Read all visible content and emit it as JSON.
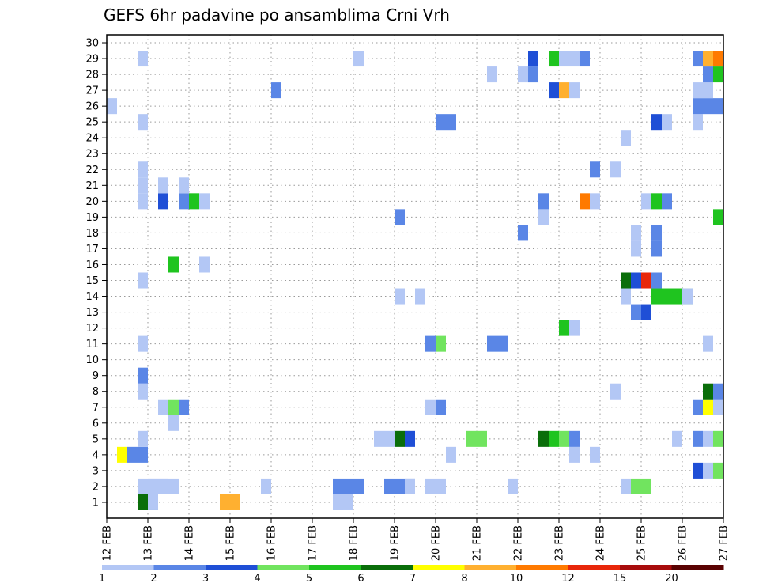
{
  "chart_data": {
    "type": "heatmap",
    "title": "GEFS 6hr padavine po ansamblima Crni Vrh",
    "xlabel": "",
    "ylabel": "",
    "x_ticks": [
      "12 FEB",
      "13 FEB",
      "14 FEB",
      "15 FEB",
      "16 FEB",
      "17 FEB",
      "18 FEB",
      "19 FEB",
      "20 FEB",
      "21 FEB",
      "22 FEB",
      "23 FEB",
      "24 FEB",
      "25 FEB",
      "26 FEB",
      "27 FEB"
    ],
    "y_ticks": [
      "1",
      "2",
      "3",
      "4",
      "5",
      "6",
      "7",
      "8",
      "9",
      "10",
      "11",
      "12",
      "13",
      "14",
      "15",
      "16",
      "17",
      "18",
      "19",
      "20",
      "21",
      "22",
      "23",
      "24",
      "25",
      "26",
      "27",
      "28",
      "29",
      "30"
    ],
    "xlim": [
      "12 FEB 00Z",
      "27 FEB 00Z"
    ],
    "ylim": [
      0,
      30
    ],
    "time_step_hours": 6,
    "grid": true,
    "colorbar": {
      "labels": [
        "1",
        "2",
        "3",
        "4",
        "5",
        "6",
        "7",
        "8",
        "10",
        "12",
        "15",
        "20"
      ],
      "colors": [
        "#b3c7f5",
        "#5a86e6",
        "#1f4fd6",
        "#71e45f",
        "#1fc41f",
        "#0a6e0a",
        "#ffff00",
        "#ffb030",
        "#ff7a00",
        "#e8270a",
        "#a80c0c",
        "#5a0202"
      ]
    },
    "cells": [
      [
        0,
        0.75,
        1,
        5
      ],
      [
        0,
        0.75,
        2,
        6
      ],
      [
        0,
        2.75,
        1,
        8
      ],
      [
        0,
        2.75,
        2,
        8
      ],
      [
        0,
        1,
        1,
        1
      ],
      [
        0,
        5.5,
        1,
        1
      ],
      [
        0,
        5.5,
        2,
        1
      ],
      [
        1,
        0.75,
        3,
        1
      ],
      [
        1,
        1,
        3,
        1
      ],
      [
        1,
        3.75,
        1,
        1
      ],
      [
        1,
        5.5,
        3,
        2
      ],
      [
        1,
        6.75,
        3,
        2
      ],
      [
        1,
        7.25,
        1,
        1
      ],
      [
        1,
        7.75,
        2,
        1
      ],
      [
        1,
        9.75,
        1,
        1
      ],
      [
        1,
        12.5,
        1,
        1
      ],
      [
        1,
        12.75,
        1,
        4
      ],
      [
        1,
        13,
        1,
        4
      ],
      [
        2,
        14.25,
        1,
        3
      ],
      [
        2,
        14.5,
        1,
        1
      ],
      [
        2,
        14.75,
        1,
        4
      ],
      [
        2,
        15,
        1,
        6
      ],
      [
        3,
        0.25,
        1,
        7
      ],
      [
        3,
        0.5,
        2,
        2
      ],
      [
        3,
        8.25,
        1,
        1
      ],
      [
        3,
        11.25,
        1,
        1
      ],
      [
        3,
        11.75,
        1,
        1
      ],
      [
        4,
        0.75,
        1,
        1
      ],
      [
        4,
        6.5,
        2,
        1
      ],
      [
        4,
        7,
        1,
        6
      ],
      [
        4,
        7.25,
        1,
        3
      ],
      [
        4,
        8.75,
        2,
        4
      ],
      [
        4,
        10.5,
        1,
        6
      ],
      [
        4,
        10.75,
        1,
        5
      ],
      [
        4,
        11,
        1,
        4
      ],
      [
        4,
        11.25,
        1,
        2
      ],
      [
        4,
        13.75,
        1,
        1
      ],
      [
        4,
        14.25,
        1,
        2
      ],
      [
        4,
        14.5,
        1,
        1
      ],
      [
        4,
        14.75,
        1,
        4
      ],
      [
        4,
        15,
        1,
        4
      ],
      [
        5,
        1.5,
        1,
        1
      ],
      [
        5,
        15,
        1,
        4
      ],
      [
        6,
        1.25,
        1,
        1
      ],
      [
        6,
        1.5,
        1,
        4
      ],
      [
        6,
        1.75,
        1,
        2
      ],
      [
        6,
        7.75,
        1,
        1
      ],
      [
        6,
        8,
        1,
        2
      ],
      [
        6,
        14.25,
        1,
        2
      ],
      [
        6,
        14.5,
        1,
        7
      ],
      [
        6,
        14.75,
        2,
        1
      ],
      [
        7,
        0.75,
        1,
        1
      ],
      [
        7,
        12.25,
        1,
        1
      ],
      [
        7,
        14.5,
        1,
        6
      ],
      [
        7,
        14.75,
        1,
        2
      ],
      [
        8,
        0.75,
        1,
        2
      ],
      [
        9,
        15,
        1,
        1
      ],
      [
        10,
        0.75,
        1,
        1
      ],
      [
        10,
        7.75,
        1,
        2
      ],
      [
        10,
        8,
        1,
        4
      ],
      [
        10,
        9.25,
        2,
        2
      ],
      [
        10,
        14.5,
        1,
        1
      ],
      [
        11,
        11,
        1,
        5
      ],
      [
        11,
        11.25,
        1,
        1
      ],
      [
        12,
        12.75,
        1,
        2
      ],
      [
        12,
        13,
        1,
        3
      ],
      [
        13,
        7,
        1,
        1
      ],
      [
        13,
        7.5,
        1,
        1
      ],
      [
        13,
        12.5,
        1,
        1
      ],
      [
        13,
        13.25,
        4,
        5
      ],
      [
        13,
        14,
        1,
        1
      ],
      [
        14,
        0.75,
        1,
        1
      ],
      [
        14,
        12.5,
        1,
        6
      ],
      [
        14,
        12.75,
        1,
        3
      ],
      [
        14,
        13,
        1,
        10
      ],
      [
        14,
        13.25,
        1,
        2
      ],
      [
        15,
        1.5,
        1,
        5
      ],
      [
        15,
        2.25,
        1,
        1
      ],
      [
        15,
        15,
        1,
        2
      ],
      [
        16,
        12.75,
        1,
        1
      ],
      [
        16,
        13.25,
        1,
        2
      ],
      [
        16,
        15,
        1,
        1
      ],
      [
        17,
        10,
        1,
        2
      ],
      [
        17,
        12.75,
        1,
        1
      ],
      [
        17,
        13.25,
        1,
        2
      ],
      [
        17,
        15,
        1,
        3
      ],
      [
        18,
        7,
        1,
        2
      ],
      [
        18,
        10.5,
        1,
        1
      ],
      [
        18,
        14.75,
        1,
        5
      ],
      [
        18,
        15,
        1,
        12
      ],
      [
        19,
        0.75,
        1,
        1
      ],
      [
        19,
        1.25,
        1,
        3
      ],
      [
        19,
        1.75,
        1,
        2
      ],
      [
        19,
        2,
        1,
        5
      ],
      [
        19,
        2.25,
        1,
        1
      ],
      [
        19,
        10.5,
        1,
        2
      ],
      [
        19,
        11.5,
        1,
        9
      ],
      [
        19,
        11.75,
        1,
        1
      ],
      [
        19,
        13,
        1,
        1
      ],
      [
        19,
        13.25,
        1,
        5
      ],
      [
        19,
        13.5,
        1,
        2
      ],
      [
        20,
        0.75,
        1,
        1
      ],
      [
        20,
        1.25,
        1,
        1
      ],
      [
        20,
        1.75,
        1,
        1
      ],
      [
        21,
        0.75,
        1,
        1
      ],
      [
        21,
        11.75,
        1,
        2
      ],
      [
        21,
        12.25,
        1,
        1
      ],
      [
        21,
        15,
        1,
        9
      ],
      [
        23,
        12.5,
        1,
        1
      ],
      [
        24,
        0.75,
        1,
        1
      ],
      [
        24,
        8,
        2,
        2
      ],
      [
        24,
        13.25,
        1,
        3
      ],
      [
        24,
        13.5,
        1,
        1
      ],
      [
        24,
        14.25,
        1,
        1
      ],
      [
        25,
        0,
        1,
        1
      ],
      [
        25,
        14.25,
        1,
        2
      ],
      [
        25,
        14.5,
        2,
        2
      ],
      [
        26,
        4,
        1,
        2
      ],
      [
        26,
        10.75,
        1,
        3
      ],
      [
        26,
        11,
        1,
        8
      ],
      [
        26,
        11.25,
        1,
        1
      ],
      [
        26,
        14.25,
        2,
        1
      ],
      [
        26,
        15,
        1,
        3
      ],
      [
        27,
        9.25,
        1,
        1
      ],
      [
        27,
        10,
        1,
        1
      ],
      [
        27,
        10.25,
        1,
        2
      ],
      [
        27,
        14.5,
        1,
        2
      ],
      [
        27,
        14.75,
        1,
        5
      ],
      [
        27,
        15,
        1,
        1
      ],
      [
        28,
        0.75,
        1,
        1
      ],
      [
        28,
        6,
        1,
        1
      ],
      [
        28,
        10.25,
        1,
        3
      ],
      [
        28,
        10.75,
        1,
        5
      ],
      [
        28,
        11,
        2,
        1
      ],
      [
        28,
        11.5,
        1,
        2
      ],
      [
        28,
        14.25,
        1,
        2
      ],
      [
        28,
        14.5,
        1,
        8
      ],
      [
        28,
        14.75,
        1,
        9
      ],
      [
        28,
        15,
        1,
        6
      ]
    ]
  }
}
